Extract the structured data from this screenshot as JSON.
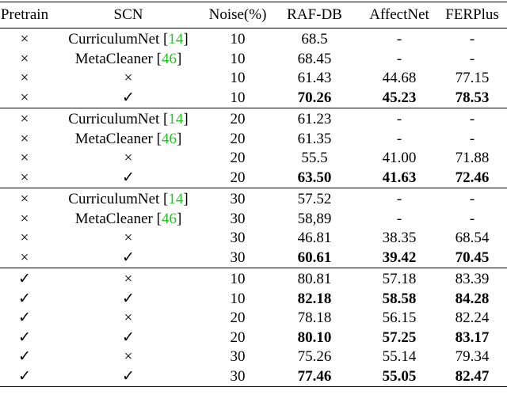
{
  "header": [
    "Pretrain",
    "SCN",
    "Noise(%)",
    "RAF-DB",
    "AffectNet",
    "FERPlus"
  ],
  "groups": [
    [
      {
        "pretrain": "×",
        "scn": {
          "text": "CurriculumNet [",
          "ref": "14",
          "end": "]"
        },
        "noise": "10",
        "results": [
          "68.5",
          "-",
          "-"
        ],
        "bold": false
      },
      {
        "pretrain": "×",
        "scn": {
          "text": "MetaCleaner [",
          "ref": "46",
          "end": "]"
        },
        "noise": "10",
        "results": [
          "68.45",
          "-",
          "-"
        ],
        "bold": false
      },
      {
        "pretrain": "×",
        "scn": "×",
        "noise": "10",
        "results": [
          "61.43",
          "44.68",
          "77.15"
        ],
        "bold": false
      },
      {
        "pretrain": "×",
        "scn": "✓",
        "noise": "10",
        "results": [
          "70.26",
          "45.23",
          "78.53"
        ],
        "bold": true
      }
    ],
    [
      {
        "pretrain": "×",
        "scn": {
          "text": "CurriculumNet [",
          "ref": "14",
          "end": "]"
        },
        "noise": "20",
        "results": [
          "61.23",
          "-",
          "-"
        ],
        "bold": false
      },
      {
        "pretrain": "×",
        "scn": {
          "text": "MetaCleaner [",
          "ref": "46",
          "end": "]"
        },
        "noise": "20",
        "results": [
          "61.35",
          "-",
          "-"
        ],
        "bold": false
      },
      {
        "pretrain": "×",
        "scn": "×",
        "noise": "20",
        "results": [
          "55.5",
          "41.00",
          "71.88"
        ],
        "bold": false
      },
      {
        "pretrain": "×",
        "scn": "✓",
        "noise": "20",
        "results": [
          "63.50",
          "41.63",
          "72.46"
        ],
        "bold": true
      }
    ],
    [
      {
        "pretrain": "×",
        "scn": {
          "text": "CurriculumNet [",
          "ref": "14",
          "end": "]"
        },
        "noise": "30",
        "results": [
          "57.52",
          "-",
          "-"
        ],
        "bold": false
      },
      {
        "pretrain": "×",
        "scn": {
          "text": "MetaCleaner [",
          "ref": "46",
          "end": "]"
        },
        "noise": "30",
        "results": [
          "58,89",
          "-",
          "-"
        ],
        "bold": false
      },
      {
        "pretrain": "×",
        "scn": "×",
        "noise": "30",
        "results": [
          "46.81",
          "38.35",
          "68.54"
        ],
        "bold": false
      },
      {
        "pretrain": "×",
        "scn": "✓",
        "noise": "30",
        "results": [
          "60.61",
          "39.42",
          "70.45"
        ],
        "bold": true
      }
    ],
    [
      {
        "pretrain": "✓",
        "scn": "×",
        "noise": "10",
        "results": [
          "80.81",
          "57.18",
          "83.39"
        ],
        "bold": false
      },
      {
        "pretrain": "✓",
        "scn": "✓",
        "noise": "10",
        "results": [
          "82.18",
          "58.58",
          "84.28"
        ],
        "bold": true
      },
      {
        "pretrain": "✓",
        "scn": "×",
        "noise": "20",
        "results": [
          "78.18",
          "56.15",
          "82.24"
        ],
        "bold": false
      },
      {
        "pretrain": "✓",
        "scn": "✓",
        "noise": "20",
        "results": [
          "80.10",
          "57.25",
          "83.17"
        ],
        "bold": true
      },
      {
        "pretrain": "✓",
        "scn": "×",
        "noise": "30",
        "results": [
          "75.26",
          "55.14",
          "79.34"
        ],
        "bold": false
      },
      {
        "pretrain": "✓",
        "scn": "✓",
        "noise": "30",
        "results": [
          "77.46",
          "55.05",
          "82.47"
        ],
        "bold": true
      }
    ]
  ]
}
